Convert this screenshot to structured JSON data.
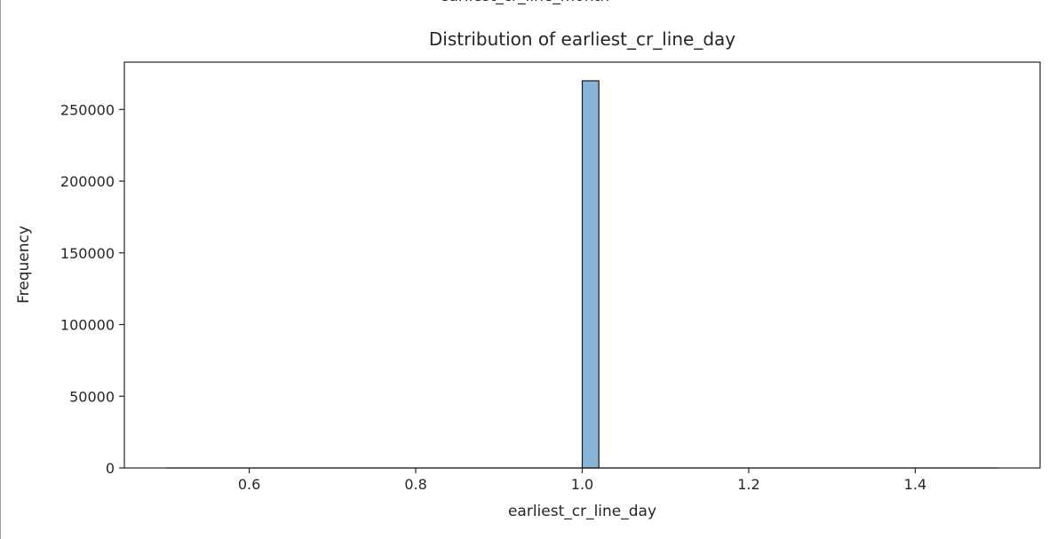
{
  "upper_chart": {
    "xlabel": "earliest_cr_line_month"
  },
  "chart_data": {
    "type": "bar",
    "title": "Distribution of earliest_cr_line_day",
    "xlabel": "earliest_cr_line_day",
    "ylabel": "Frequency",
    "xlim": [
      0.45,
      1.55
    ],
    "ylim": [
      0,
      283000
    ],
    "xticks": [
      "0.6",
      "0.8",
      "1.0",
      "1.2",
      "1.4"
    ],
    "xtick_values": [
      0.6,
      0.8,
      1.0,
      1.2,
      1.4
    ],
    "yticks": [
      "0",
      "50000",
      "100000",
      "150000",
      "200000",
      "250000"
    ],
    "ytick_values": [
      0,
      50000,
      100000,
      150000,
      200000,
      250000
    ],
    "bins": [
      {
        "x0": 1.0,
        "x1": 1.02,
        "value": 270000
      }
    ],
    "baseline": [
      0.5,
      1.5
    ],
    "grid": false,
    "colors": {
      "bar_fill": "#89b4d9",
      "bar_edge": "#1a1a1a",
      "axis": "#262626"
    }
  }
}
